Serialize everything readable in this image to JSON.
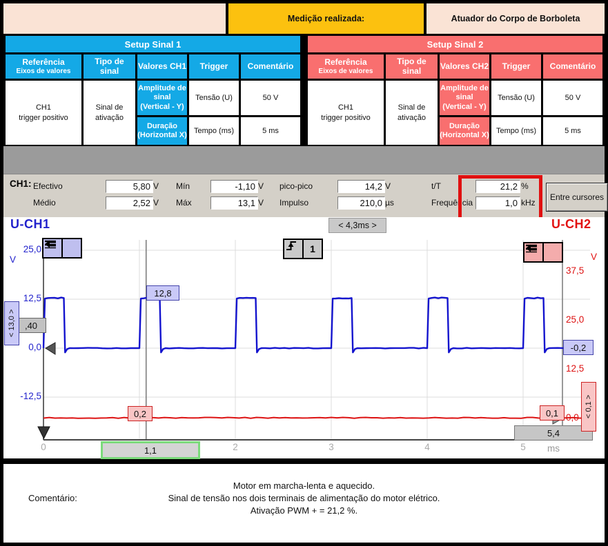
{
  "colors": {
    "cyan": "#14A9E6",
    "salmon": "#F96F6F",
    "orange": "#FCC10F",
    "peach": "#FAE3D5",
    "ch1_blue": "#1414CE",
    "ch2_red": "#DD1111",
    "highlight_red": "#E01010",
    "cursor_green": "#7BDB7B"
  },
  "header": {
    "medicao_label": "Medição realizada:",
    "medicao_value": "Atuador do Corpo de Borboleta"
  },
  "tables": [
    {
      "title": "Setup Sinal 1",
      "col_ref": "Referência",
      "col_ref_sub": "Eixos de valores",
      "col_tipo_1": "Tipo de",
      "col_tipo_2": "sinal",
      "col_valores": "Valores CH1",
      "col_trigger": "Trigger",
      "col_comentario": "Comentário",
      "row1_ref_1": "Amplitude de sinal",
      "row1_ref_2": "(Vertical - Y)",
      "row1_tipo": "Tensão (U)",
      "row1_valor": "50 V",
      "row2_ref_1": "Duração",
      "row2_ref_2": "(Horizontal X)",
      "row2_tipo": "Tempo (ms)",
      "row2_valor": "5 ms",
      "trigger_1": "CH1",
      "trigger_2": "trigger positivo",
      "comentario": "Sinal de ativação"
    },
    {
      "title": "Setup Sinal 2",
      "col_ref": "Referência",
      "col_ref_sub": "Eixos de valores",
      "col_tipo_1": "Tipo de",
      "col_tipo_2": "sinal",
      "col_valores": "Valores CH2",
      "col_trigger": "Trigger",
      "col_comentario": "Comentário",
      "row1_ref_1": "Amplitude de sinal",
      "row1_ref_2": "(Vertical - Y)",
      "row1_tipo": "Tensão (U)",
      "row1_valor": "50 V",
      "row2_ref_1": "Duração",
      "row2_ref_2": "(Horizontal X)",
      "row2_tipo": "Tempo (ms)",
      "row2_valor": "5 ms",
      "trigger_1": "CH1",
      "trigger_2": "trigger positivo",
      "comentario": "Sinal de ativação"
    }
  ],
  "measurements": {
    "channel": "CH1:",
    "efectivo": {
      "label": "Efectivo",
      "value": "5,80",
      "unit": "V"
    },
    "medio": {
      "label": "Médio",
      "value": "2,52",
      "unit": "V"
    },
    "min": {
      "label": "Mín",
      "value": "-1,10",
      "unit": "V"
    },
    "max": {
      "label": "Máx",
      "value": "13,1",
      "unit": "V"
    },
    "picopico": {
      "label": "pico-pico",
      "value": "14,2",
      "unit": "V"
    },
    "impulso": {
      "label": "Impulso",
      "value": "210,0",
      "unit": "µs"
    },
    "tT": {
      "label": "t/T",
      "value": "21,2",
      "unit": "%"
    },
    "frequencia": {
      "label": "Frequência",
      "value": "1,0",
      "unit": "kHz"
    },
    "button": "Entre cursores"
  },
  "scope": {
    "ch1_label": "U-CH1",
    "ch2_label": "U-CH2",
    "delta_label": "< 4,3ms >",
    "left_unit": "V",
    "right_unit": "V",
    "trigger_number": "1",
    "level_box": ",40",
    "ch1_scale_box": "< 13,0 >",
    "ch2_scale_box": "< 0,1 >",
    "cursor1_ch1_value": "12,8",
    "cursor1_ch2_value": "0,2",
    "cursor1_time": "1,1",
    "cursor2_ch1_value": "-0,2",
    "cursor2_ch2_value": "0,1",
    "cursor2_time": "5,4",
    "x_unit": "ms"
  },
  "chart_data": {
    "type": "line",
    "title": "",
    "x_unit": "ms",
    "x_range": [
      0,
      5.7
    ],
    "x_ticks": [
      {
        "t": 0,
        "label": "0"
      },
      {
        "t": 1,
        "label": "1"
      },
      {
        "t": 2,
        "label": "2"
      },
      {
        "t": 3,
        "label": "3"
      },
      {
        "t": 4,
        "label": "4"
      },
      {
        "t": 5,
        "label": "5"
      }
    ],
    "y_left": {
      "unit": "V",
      "color": "#2222CC",
      "ticks": [
        {
          "v": 25.0,
          "label": "25,0"
        },
        {
          "v": 12.5,
          "label": "12,5"
        },
        {
          "v": 0.0,
          "label": "0,0"
        },
        {
          "v": -12.5,
          "label": "-12,5"
        }
      ]
    },
    "y_right": {
      "unit": "V",
      "color": "#DD1111",
      "offset_v": -17.9,
      "ticks": [
        {
          "v": 37.5,
          "label": "37,5"
        },
        {
          "v": 25.0,
          "label": "25,0"
        },
        {
          "v": 12.5,
          "label": "12,5"
        },
        {
          "v": 0.0,
          "label": "0,0"
        }
      ]
    },
    "series": [
      {
        "name": "U-CH1",
        "color": "#1414CE",
        "waveform": "pwm",
        "period_ms": 1.0,
        "duty_pct": 21.2,
        "high_v": 12.8,
        "low_v": 0.0,
        "undershoot_v": -1.1
      },
      {
        "name": "U-CH2",
        "color": "#DD1111",
        "waveform": "flat",
        "level_v": 0.1
      }
    ],
    "cursors": {
      "c1_ms": 1.07,
      "c2_ms": 5.41,
      "delta_ms": 4.3
    },
    "grid": true
  },
  "comment": {
    "label": "Comentário:",
    "line1": "Motor em marcha-lenta e aquecido.",
    "line2": "Sinal de tensão nos dois terminais de alimentação do motor elétrico.",
    "line3": "Ativação PWM + = 21,2 %."
  }
}
